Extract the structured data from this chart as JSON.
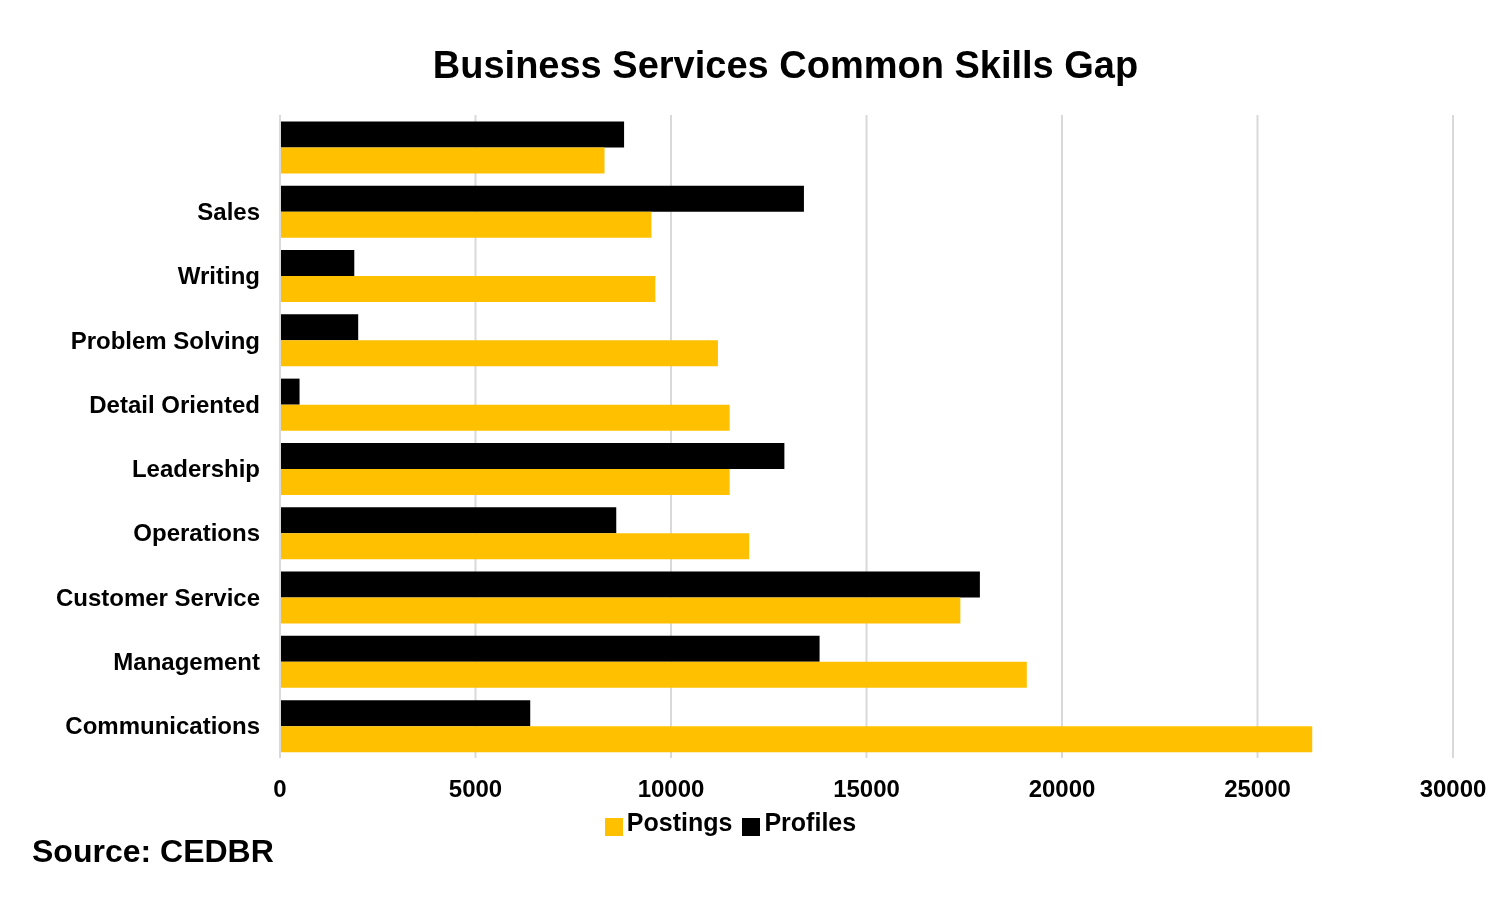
{
  "chart_data": {
    "type": "bar",
    "orientation": "horizontal",
    "title": "Business Services Common Skills Gap",
    "categories": [
      null,
      "Sales",
      "Writing",
      "Problem Solving",
      "Detail Oriented",
      "Leadership",
      "Operations",
      "Customer Service",
      "Management",
      "Communications"
    ],
    "series": [
      {
        "name": "Profiles",
        "color": "#000000",
        "values": [
          8800,
          13400,
          1900,
          2000,
          500,
          12900,
          8600,
          17900,
          13800,
          6400
        ]
      },
      {
        "name": "Postings",
        "color": "#ffc000",
        "values": [
          8300,
          9500,
          9600,
          11200,
          11500,
          11500,
          12000,
          17400,
          19100,
          26400
        ]
      }
    ],
    "xlim": [
      0,
      30000
    ],
    "xticks": [
      0,
      5000,
      10000,
      15000,
      20000,
      25000,
      30000
    ],
    "grid": "x",
    "legend": "bottom",
    "annotations": [
      "Source: CEDBR"
    ]
  }
}
